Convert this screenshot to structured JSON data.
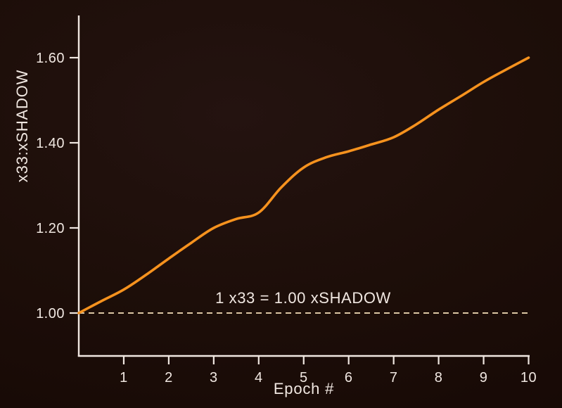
{
  "colors": {
    "background_center": "#241310",
    "background_edge": "#150804",
    "axis": "#f0e7e1",
    "text": "#f0e7e1",
    "series_line": "#f6921e",
    "reference_line": "#dcc7a4"
  },
  "chart_data": {
    "type": "line",
    "title": "",
    "xlabel": "Epoch #",
    "ylabel": "x33:xSHADOW",
    "x": [
      0,
      0.5,
      1,
      1.5,
      2,
      2.5,
      3,
      3.5,
      4,
      4.5,
      5,
      5.5,
      6,
      6.5,
      7,
      7.5,
      8,
      8.5,
      9,
      9.5,
      10
    ],
    "values": [
      1.0,
      1.028,
      1.055,
      1.09,
      1.128,
      1.165,
      1.2,
      1.221,
      1.236,
      1.295,
      1.342,
      1.366,
      1.38,
      1.396,
      1.413,
      1.443,
      1.478,
      1.51,
      1.543,
      1.572,
      1.6
    ],
    "xticks": [
      1,
      2,
      3,
      4,
      5,
      6,
      7,
      8,
      9,
      10
    ],
    "xtick_labels": [
      "1",
      "2",
      "3",
      "4",
      "5",
      "6",
      "7",
      "8",
      "9",
      "10"
    ],
    "yticks": [
      1.0,
      1.2,
      1.4,
      1.6
    ],
    "ytick_labels": [
      "1.00",
      "1.20",
      "1.40",
      "1.60"
    ],
    "xlim": [
      0,
      10
    ],
    "ylim": [
      1.0,
      1.7
    ],
    "grid": false,
    "legend": false,
    "line_color": "#f6921e",
    "reference_line": {
      "y": 1.0,
      "style": "dashed",
      "label": "1 x33 = 1.00 xSHADOW"
    }
  }
}
